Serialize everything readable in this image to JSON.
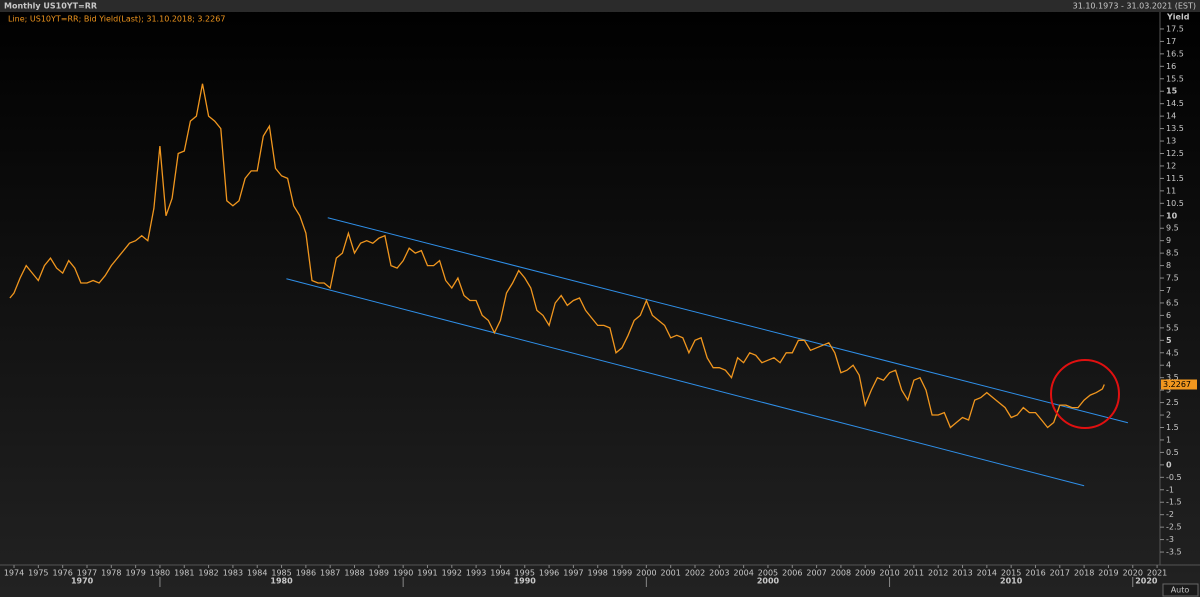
{
  "header": {
    "title": "Monthly US10YT=RR",
    "range": "31.10.1973 - 31.03.2021 (EST)"
  },
  "chart_data": {
    "type": "line",
    "y_axis_label": "Yield",
    "auto_button": "Auto",
    "xlim": [
      1973.6,
      2021.12
    ],
    "ylim": [
      -4.02,
      18.06
    ],
    "xticks": [
      1974,
      1975,
      1976,
      1977,
      1978,
      1979,
      1980,
      1981,
      1982,
      1983,
      1984,
      1985,
      1986,
      1987,
      1988,
      1989,
      1990,
      1991,
      1992,
      1993,
      1994,
      1995,
      1996,
      1997,
      1998,
      1999,
      2000,
      2001,
      2002,
      2003,
      2004,
      2005,
      2006,
      2007,
      2008,
      2009,
      2010,
      2011,
      2012,
      2013,
      2014,
      2015,
      2016,
      2017,
      2018,
      2019,
      2020,
      2021
    ],
    "decade_ticks": [
      1970,
      1980,
      1990,
      2000,
      2010,
      2020
    ],
    "yticks": [
      17.5,
      17,
      16.5,
      16,
      15.5,
      15,
      14.5,
      14,
      13.5,
      13,
      12.5,
      12,
      11.5,
      11,
      10.5,
      10,
      9.5,
      9,
      8.5,
      8,
      7.5,
      7,
      6.5,
      6,
      5.5,
      5,
      4.5,
      4,
      3.5,
      3,
      2.5,
      2,
      1.5,
      1,
      0.5,
      0,
      -0.5,
      -1,
      -1.5,
      -2,
      -2.5,
      -3,
      -3.5
    ],
    "grid": false,
    "series": [
      {
        "name": "Line; US10YT=RR; Bid Yield(Last); 31.10.2018; 3.2267",
        "color": "#f0961e",
        "x": [
          1973.83,
          1974.0,
          1974.25,
          1974.5,
          1974.75,
          1975.0,
          1975.25,
          1975.5,
          1975.75,
          1976.0,
          1976.25,
          1976.5,
          1976.75,
          1977.0,
          1977.25,
          1977.5,
          1977.75,
          1978.0,
          1978.25,
          1978.5,
          1978.75,
          1979.0,
          1979.25,
          1979.5,
          1979.75,
          1980.0,
          1980.25,
          1980.5,
          1980.75,
          1981.0,
          1981.25,
          1981.5,
          1981.75,
          1982.0,
          1982.25,
          1982.5,
          1982.75,
          1983.0,
          1983.25,
          1983.5,
          1983.75,
          1984.0,
          1984.25,
          1984.5,
          1984.75,
          1985.0,
          1985.25,
          1985.5,
          1985.75,
          1986.0,
          1986.25,
          1986.5,
          1986.75,
          1987.0,
          1987.25,
          1987.5,
          1987.75,
          1988.0,
          1988.25,
          1988.5,
          1988.75,
          1989.0,
          1989.25,
          1989.5,
          1989.75,
          1990.0,
          1990.25,
          1990.5,
          1990.75,
          1991.0,
          1991.25,
          1991.5,
          1991.75,
          1992.0,
          1992.25,
          1992.5,
          1992.75,
          1993.0,
          1993.25,
          1993.5,
          1993.75,
          1994.0,
          1994.25,
          1994.5,
          1994.75,
          1995.0,
          1995.25,
          1995.5,
          1995.75,
          1996.0,
          1996.25,
          1996.5,
          1996.75,
          1997.0,
          1997.25,
          1997.5,
          1997.75,
          1998.0,
          1998.25,
          1998.5,
          1998.75,
          1999.0,
          1999.25,
          1999.5,
          1999.75,
          2000.0,
          2000.25,
          2000.5,
          2000.75,
          2001.0,
          2001.25,
          2001.5,
          2001.75,
          2002.0,
          2002.25,
          2002.5,
          2002.75,
          2003.0,
          2003.25,
          2003.5,
          2003.75,
          2004.0,
          2004.25,
          2004.5,
          2004.75,
          2005.0,
          2005.25,
          2005.5,
          2005.75,
          2006.0,
          2006.25,
          2006.5,
          2006.75,
          2007.0,
          2007.25,
          2007.5,
          2007.75,
          2008.0,
          2008.25,
          2008.5,
          2008.75,
          2009.0,
          2009.25,
          2009.5,
          2009.75,
          2010.0,
          2010.25,
          2010.5,
          2010.75,
          2011.0,
          2011.25,
          2011.5,
          2011.75,
          2012.0,
          2012.25,
          2012.5,
          2012.75,
          2013.0,
          2013.25,
          2013.5,
          2013.75,
          2014.0,
          2014.25,
          2014.5,
          2014.75,
          2015.0,
          2015.25,
          2015.5,
          2015.75,
          2016.0,
          2016.25,
          2016.5,
          2016.75,
          2017.0,
          2017.25,
          2017.5,
          2017.75,
          2018.0,
          2018.25,
          2018.5,
          2018.75,
          2018.83
        ],
        "values": [
          6.7,
          6.9,
          7.5,
          8.0,
          7.7,
          7.4,
          8.0,
          8.3,
          7.9,
          7.7,
          8.2,
          7.9,
          7.3,
          7.3,
          7.4,
          7.3,
          7.6,
          8.0,
          8.3,
          8.6,
          8.9,
          9.0,
          9.2,
          9.0,
          10.3,
          12.8,
          10.0,
          10.7,
          12.5,
          12.6,
          13.8,
          14.0,
          15.3,
          14.0,
          13.8,
          13.5,
          10.6,
          10.4,
          10.6,
          11.5,
          11.8,
          11.8,
          13.2,
          13.6,
          11.9,
          11.6,
          11.5,
          10.4,
          10.0,
          9.3,
          7.4,
          7.3,
          7.3,
          7.1,
          8.3,
          8.5,
          9.3,
          8.5,
          8.9,
          9.0,
          8.9,
          9.1,
          9.2,
          8.0,
          7.9,
          8.2,
          8.7,
          8.5,
          8.6,
          8.0,
          8.0,
          8.2,
          7.4,
          7.1,
          7.5,
          6.8,
          6.6,
          6.6,
          6.0,
          5.8,
          5.3,
          5.8,
          6.9,
          7.3,
          7.8,
          7.5,
          7.1,
          6.2,
          6.0,
          5.6,
          6.5,
          6.8,
          6.4,
          6.6,
          6.7,
          6.2,
          5.9,
          5.6,
          5.6,
          5.5,
          4.5,
          4.7,
          5.2,
          5.8,
          6.0,
          6.6,
          6.0,
          5.8,
          5.6,
          5.1,
          5.2,
          5.1,
          4.5,
          5.0,
          5.1,
          4.3,
          3.9,
          3.9,
          3.8,
          3.5,
          4.3,
          4.1,
          4.5,
          4.4,
          4.1,
          4.2,
          4.3,
          4.1,
          4.5,
          4.5,
          5.0,
          5.0,
          4.6,
          4.7,
          4.8,
          4.9,
          4.5,
          3.7,
          3.8,
          4.0,
          3.6,
          2.4,
          3.0,
          3.5,
          3.4,
          3.7,
          3.8,
          3.0,
          2.6,
          3.4,
          3.5,
          3.0,
          2.0,
          2.0,
          2.1,
          1.5,
          1.7,
          1.9,
          1.8,
          2.6,
          2.7,
          2.9,
          2.7,
          2.5,
          2.3,
          1.9,
          2.0,
          2.3,
          2.1,
          2.1,
          1.8,
          1.5,
          1.7,
          2.4,
          2.4,
          2.3,
          2.3,
          2.6,
          2.8,
          2.9,
          3.05,
          3.2267
        ]
      }
    ],
    "trend_lines": [
      {
        "color": "#2f8fe8",
        "x": [
          1986.9,
          2019.8
        ],
        "values": [
          9.92,
          1.69
        ]
      },
      {
        "color": "#2f8fe8",
        "x": [
          1985.2,
          2018.0
        ],
        "values": [
          7.47,
          -0.84
        ]
      }
    ]
  }
}
